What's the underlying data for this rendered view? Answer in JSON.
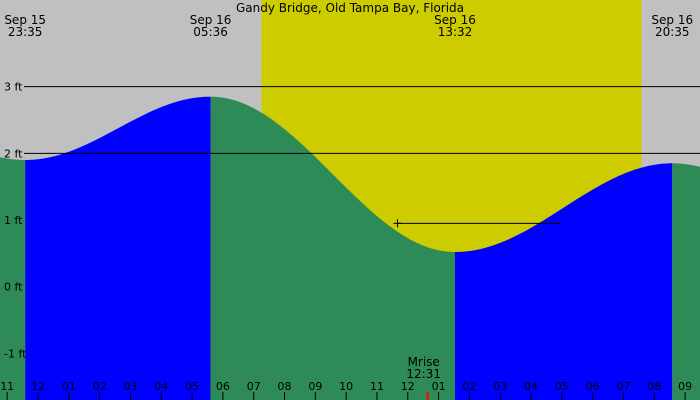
{
  "chart_data": {
    "type": "area",
    "title": "Gandy Bridge, Old Tampa Bay, Florida",
    "colors": {
      "night": "#c0c0c0",
      "day": "#cccc00",
      "rising": "#0000ff",
      "falling": "#2e8b57",
      "grid": "#000000",
      "moonrise_mark": "#ff0000"
    },
    "ylim": [
      -1.7,
      4.3
    ],
    "yticks": [
      {
        "value": 3,
        "label": "3 ft"
      },
      {
        "value": 2,
        "label": "2 ft"
      },
      {
        "value": 1,
        "label": "1 ft"
      },
      {
        "value": 0,
        "label": "0 ft"
      },
      {
        "value": -1,
        "label": "-1 ft"
      }
    ],
    "xlim": [
      "2024-09-15T22:46",
      "2024-09-16T21:29"
    ],
    "events": [
      {
        "date": "Sep 15",
        "time": "23:35",
        "x": "2024-09-15T23:35",
        "height": 1.9
      },
      {
        "date": "Sep 16",
        "time": "05:36",
        "x": "2024-09-16T05:36",
        "height": 2.85
      },
      {
        "date": "Sep 16",
        "time": "13:32",
        "x": "2024-09-16T13:32",
        "height": 0.52
      },
      {
        "date": "Sep 16",
        "time": "20:35",
        "x": "2024-09-16T20:35",
        "height": 1.85
      }
    ],
    "daylight": {
      "start": "2024-09-16T07:15",
      "end": "2024-09-16T19:35"
    },
    "current": {
      "time": "2024-09-16T11:40",
      "height": 0.95
    },
    "moonrise": {
      "label": "Mrise",
      "time_label": "12:31",
      "x": "2024-09-16T12:31"
    },
    "hour_ticks": [
      "11",
      "12",
      "01",
      "02",
      "03",
      "04",
      "05",
      "06",
      "07",
      "08",
      "09",
      "10",
      "11",
      "12",
      "01",
      "02",
      "03",
      "04",
      "05",
      "06",
      "07",
      "08",
      "09"
    ],
    "first_hour_tick": "2024-09-15T23:00"
  }
}
